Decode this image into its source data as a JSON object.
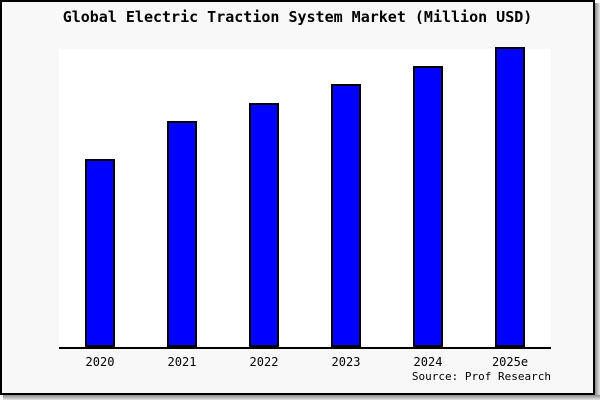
{
  "window": {
    "canvas_bg": "#f8f8f8",
    "plot_bg": "#ffffff",
    "border_color": "#000000",
    "shadow_color": "#8a8a8a"
  },
  "chart_data": {
    "type": "bar",
    "title": "Global Electric Traction System Market (Million USD)",
    "units": "Million USD",
    "categories": [
      "2020",
      "2021",
      "2022",
      "2023",
      "2024",
      "2025e"
    ],
    "values_relative_pct_of_max": [
      62.8,
      75.4,
      81.4,
      87.7,
      93.7,
      100
    ],
    "xlabel": "",
    "ylabel": "",
    "y_axis_visible": false,
    "y_tick_labels_visible": false,
    "grid": false,
    "legend": false,
    "bar_color": "#0000ff",
    "bar_border_color": "#000000",
    "source": "Source: Prof Research"
  }
}
